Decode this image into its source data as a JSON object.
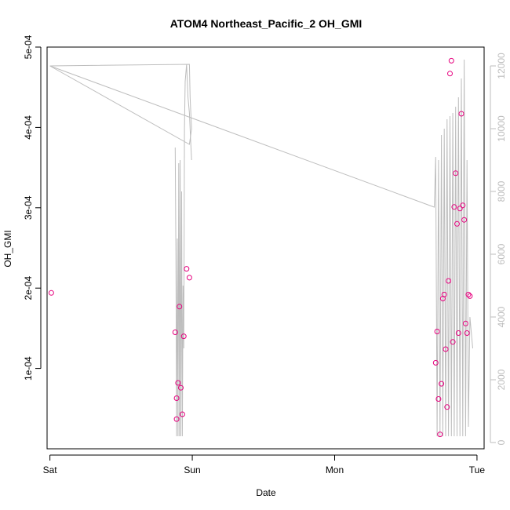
{
  "chart_data": {
    "type": "scatter",
    "title": "ATOM4 Northeast_Pacific_2 OH_GMI",
    "xlabel": "Date",
    "ylabel": "OH_GMI",
    "x_ticks": [
      "Sat",
      "Sun",
      "Mon",
      "Tue"
    ],
    "x_range_days": [
      -0.02,
      3.05
    ],
    "y_ticks": [
      "1e-04",
      "2e-04",
      "3e-04",
      "4e-04",
      "5e-04"
    ],
    "y_tick_values": [
      0.0001,
      0.0002,
      0.0003,
      0.0004,
      0.0005
    ],
    "ylim": [
      0.0,
      0.0005
    ],
    "y2_ticks": [
      "0",
      "2000",
      "4000",
      "6000",
      "8000",
      "10000",
      "12000"
    ],
    "y2_tick_values": [
      0,
      2000,
      4000,
      6000,
      8000,
      10000,
      12000
    ],
    "y2lim": [
      -200,
      12600
    ],
    "colors": {
      "points": "#e6007e",
      "line": "#bdbdbd",
      "axis": "#000000",
      "axis_right": "#bdbdbd"
    },
    "series": [
      {
        "kind": "points",
        "axis": "left",
        "x": [
          0.01,
          0.88,
          0.89,
          0.89,
          0.9,
          0.91,
          0.92,
          0.93,
          0.94,
          0.96,
          0.98,
          2.71,
          2.72,
          2.73,
          2.74,
          2.75,
          2.76,
          2.77,
          2.78,
          2.79,
          2.8,
          2.81,
          2.82,
          2.83,
          2.84,
          2.85,
          2.86,
          2.87,
          2.88,
          2.89,
          2.9,
          2.91,
          2.92,
          2.93,
          2.94,
          2.95
        ],
        "y": [
          0.000194,
          0.000145,
          6.3e-05,
          3.7e-05,
          8.2e-05,
          0.000177,
          7.6e-05,
          4.3e-05,
          0.00014,
          0.000224,
          0.000213,
          0.000107,
          0.000146,
          6.2e-05,
          1.8e-05,
          8.1e-05,
          0.000187,
          0.000192,
          0.000124,
          5.2e-05,
          0.000209,
          0.000467,
          0.000483,
          0.000133,
          0.000301,
          0.000343,
          0.00028,
          0.000144,
          0.000299,
          0.000417,
          0.000303,
          0.000285,
          0.000156,
          0.000144,
          0.000192,
          0.00019
        ]
      },
      {
        "kind": "line",
        "axis": "right",
        "x": [
          0.0,
          0.98,
          0.985,
          0.99,
          0.995,
          0.98,
          0.0,
          2.7,
          2.71,
          2.72,
          2.73,
          2.74,
          2.75,
          2.76,
          2.77,
          2.78,
          2.79,
          2.8,
          2.81,
          2.82,
          2.83,
          2.84,
          2.85,
          2.86,
          2.87,
          2.88,
          2.89,
          2.9,
          2.91,
          2.92,
          2.93,
          2.94,
          2.95,
          2.96,
          2.97
        ],
        "y": [
          12000,
          12050,
          11000,
          10500,
          10000,
          9500,
          12000,
          7500,
          9100,
          200,
          9000,
          200,
          9800,
          200,
          10000,
          200,
          10300,
          200,
          10400,
          200,
          10500,
          200,
          10700,
          200,
          11000,
          200,
          11600,
          200,
          12200,
          200,
          9000,
          500,
          4000,
          3500,
          3000
        ]
      },
      {
        "kind": "line",
        "axis": "right",
        "x": [
          0.88,
          0.885,
          0.89,
          0.895,
          0.9,
          0.905,
          0.91,
          0.915,
          0.92,
          0.925,
          0.93,
          0.935,
          0.94,
          0.945,
          0.95,
          0.96,
          0.97,
          0.98,
          0.985,
          0.99,
          0.995
        ],
        "y": [
          9400,
          6000,
          200,
          6500,
          200,
          8900,
          200,
          9000,
          200,
          8000,
          200,
          5000,
          3000,
          10000,
          11500,
          12050,
          11000,
          10500,
          10000,
          9500,
          9000
        ]
      }
    ]
  }
}
